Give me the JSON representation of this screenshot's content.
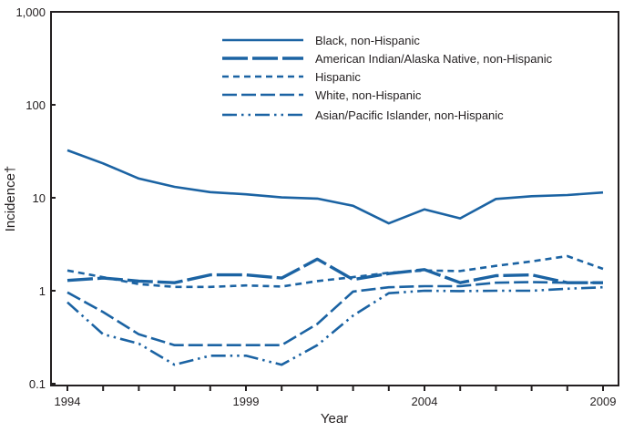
{
  "chart_data": {
    "type": "line",
    "title": "",
    "xlabel": "Year",
    "ylabel": "Incidence†",
    "yscale": "log",
    "ylim": [
      0.1,
      1000
    ],
    "xlim": [
      1994,
      2009
    ],
    "yticks": [
      {
        "value": 1000,
        "label": "1,000"
      },
      {
        "value": 100,
        "label": "100"
      },
      {
        "value": 10,
        "label": "10"
      },
      {
        "value": 1,
        "label": "1"
      },
      {
        "value": 0.1,
        "label": "0.1"
      }
    ],
    "xtick_labels": [
      "1994",
      "1999",
      "2004",
      "2009"
    ],
    "grid": false,
    "legend_position": "top-center",
    "line_color": "#1b63a3",
    "x": [
      1994,
      1995,
      1996,
      1997,
      1998,
      1999,
      2000,
      2001,
      2002,
      2003,
      2004,
      2005,
      2006,
      2007,
      2008,
      2009
    ],
    "series": [
      {
        "name": "Black, non-Hispanic",
        "style": "solid",
        "values": [
          32.4,
          23.4,
          16.1,
          13.1,
          11.5,
          10.9,
          10.1,
          9.8,
          8.2,
          5.3,
          7.5,
          6.0,
          9.7,
          10.4,
          10.7,
          11.4
        ]
      },
      {
        "name": "American Indian/Alaska Native, non-Hispanic",
        "style": "thick-long-dash",
        "values": [
          1.29,
          1.37,
          1.27,
          1.22,
          1.48,
          1.48,
          1.37,
          2.19,
          1.32,
          1.53,
          1.69,
          1.22,
          1.45,
          1.48,
          1.22,
          1.22
        ]
      },
      {
        "name": "Hispanic",
        "style": "short-dash",
        "values": [
          1.65,
          1.4,
          1.18,
          1.1,
          1.1,
          1.14,
          1.11,
          1.27,
          1.4,
          1.56,
          1.65,
          1.63,
          1.85,
          2.07,
          2.36,
          1.72
        ]
      },
      {
        "name": "White, non-Hispanic",
        "style": "long-dash",
        "values": [
          0.96,
          0.59,
          0.34,
          0.26,
          0.26,
          0.26,
          0.26,
          0.44,
          0.98,
          1.09,
          1.12,
          1.12,
          1.22,
          1.24,
          1.22,
          1.22
        ]
      },
      {
        "name": "Asian/Pacific Islander, non-Hispanic",
        "style": "dash-dot-dot",
        "values": [
          0.75,
          0.34,
          0.27,
          0.16,
          0.2,
          0.2,
          0.16,
          0.26,
          0.54,
          0.94,
          1.0,
          0.99,
          1.0,
          1.0,
          1.05,
          1.09
        ]
      }
    ]
  }
}
